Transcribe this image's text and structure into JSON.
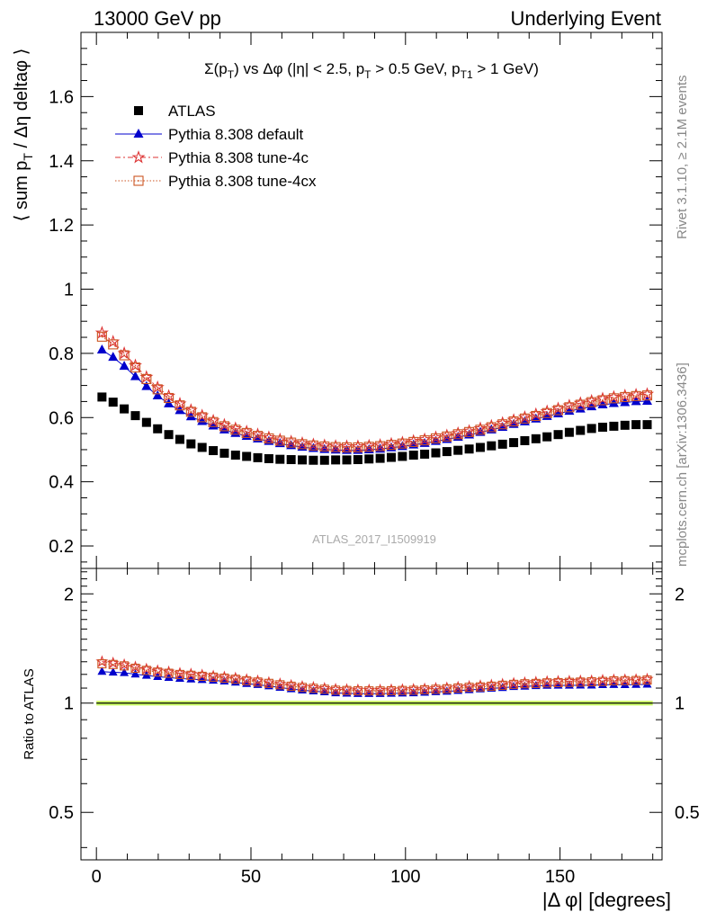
{
  "header": {
    "left": "13000 GeV pp",
    "right": "Underlying Event"
  },
  "side_labels": {
    "rivet": "Rivet 3.1.10, ≥ 2.1M events",
    "mcplots": "mcplots.cern.ch [arXiv:1306.3436]"
  },
  "watermark": "ATLAS_2017_I1509919",
  "chart_data": [
    {
      "type": "scatter",
      "title": "Σ(p_T) vs Δφ (|η| < 2.5, p_T > 0.5 GeV, p_T1 > 1 GeV)",
      "ylabel": "⟨ sum p_T / Δη deltaφ ⟩",
      "xlabel": "|Δ φ| [degrees]",
      "xlim": [
        -5,
        183
      ],
      "ylim": [
        0.13,
        1.8
      ],
      "grid": false,
      "legend_position": "top-left",
      "x_ticks": [
        0,
        50,
        100,
        150
      ],
      "y_ticks": [
        0.2,
        0.4,
        0.6,
        0.8,
        1,
        1.2,
        1.4,
        1.6
      ],
      "y_tick_labels": [
        "0.2",
        "0.4",
        "0.6",
        "0.8",
        "1",
        "1.2",
        "1.4",
        "1.6"
      ],
      "x": [
        1.8,
        5.4,
        9,
        12.6,
        16.2,
        19.8,
        23.4,
        27,
        30.6,
        34.2,
        37.8,
        41.4,
        45,
        48.6,
        52.2,
        55.8,
        59.4,
        63,
        66.6,
        70.2,
        73.8,
        77.4,
        81,
        84.6,
        88.2,
        91.8,
        95.4,
        99,
        102.6,
        106.2,
        109.8,
        113.4,
        117,
        120.6,
        124.2,
        127.8,
        131.4,
        135,
        138.6,
        142.2,
        145.8,
        149.4,
        153,
        156.6,
        160.2,
        163.8,
        167.4,
        171,
        174.6,
        178.2
      ],
      "series": [
        {
          "name": "ATLAS",
          "color": "#000000",
          "marker": "square",
          "values": [
            0.664,
            0.648,
            0.627,
            0.606,
            0.585,
            0.565,
            0.547,
            0.532,
            0.518,
            0.507,
            0.497,
            0.489,
            0.483,
            0.479,
            0.475,
            0.472,
            0.47,
            0.469,
            0.468,
            0.467,
            0.467,
            0.468,
            0.468,
            0.469,
            0.471,
            0.473,
            0.476,
            0.479,
            0.483,
            0.486,
            0.49,
            0.494,
            0.498,
            0.502,
            0.507,
            0.512,
            0.517,
            0.522,
            0.528,
            0.534,
            0.54,
            0.547,
            0.554,
            0.56,
            0.566,
            0.57,
            0.573,
            0.576,
            0.578,
            0.578
          ]
        },
        {
          "name": "Pythia 8.308 default",
          "color": "#0000cc",
          "marker": "triangle",
          "values": [
            0.811,
            0.788,
            0.76,
            0.728,
            0.697,
            0.668,
            0.643,
            0.622,
            0.603,
            0.588,
            0.574,
            0.562,
            0.551,
            0.542,
            0.534,
            0.526,
            0.519,
            0.513,
            0.508,
            0.504,
            0.501,
            0.499,
            0.498,
            0.498,
            0.5,
            0.502,
            0.506,
            0.51,
            0.515,
            0.52,
            0.526,
            0.532,
            0.539,
            0.546,
            0.554,
            0.562,
            0.57,
            0.579,
            0.587,
            0.596,
            0.604,
            0.612,
            0.62,
            0.627,
            0.634,
            0.64,
            0.644,
            0.647,
            0.65,
            0.651
          ]
        },
        {
          "name": "Pythia 8.308 tune-4c",
          "color": "#dd3333",
          "marker": "star",
          "values": [
            0.864,
            0.836,
            0.8,
            0.762,
            0.726,
            0.694,
            0.667,
            0.643,
            0.623,
            0.606,
            0.59,
            0.577,
            0.566,
            0.556,
            0.547,
            0.538,
            0.531,
            0.525,
            0.52,
            0.516,
            0.513,
            0.511,
            0.51,
            0.51,
            0.512,
            0.514,
            0.518,
            0.522,
            0.527,
            0.532,
            0.538,
            0.544,
            0.551,
            0.558,
            0.566,
            0.574,
            0.583,
            0.592,
            0.601,
            0.61,
            0.619,
            0.628,
            0.637,
            0.645,
            0.652,
            0.659,
            0.664,
            0.668,
            0.671,
            0.673
          ]
        },
        {
          "name": "Pythia 8.308 tune-4cx",
          "color": "#cc5522",
          "marker": "open-square",
          "values": [
            0.852,
            0.828,
            0.794,
            0.756,
            0.72,
            0.688,
            0.661,
            0.638,
            0.618,
            0.601,
            0.586,
            0.573,
            0.562,
            0.552,
            0.543,
            0.535,
            0.528,
            0.522,
            0.517,
            0.513,
            0.51,
            0.508,
            0.507,
            0.507,
            0.509,
            0.511,
            0.515,
            0.519,
            0.524,
            0.529,
            0.535,
            0.541,
            0.548,
            0.555,
            0.562,
            0.57,
            0.579,
            0.588,
            0.597,
            0.605,
            0.614,
            0.623,
            0.632,
            0.64,
            0.648,
            0.654,
            0.66,
            0.664,
            0.667,
            0.669
          ]
        }
      ]
    },
    {
      "type": "scatter",
      "ylabel": "Ratio to ATLAS",
      "xlabel": "|Δ φ| [degrees]",
      "xlim": [
        -5,
        183
      ],
      "ylim": [
        0.37,
        2.35
      ],
      "log_y": true,
      "grid": false,
      "y_ticks": [
        0.5,
        1,
        2
      ],
      "y_tick_labels": [
        "0.5",
        "1",
        "2"
      ],
      "reference_band": {
        "color": "#ccff66",
        "low": 0.985,
        "high": 1.015
      },
      "series_ref": "ratios of Pythia series to ATLAS series"
    }
  ]
}
